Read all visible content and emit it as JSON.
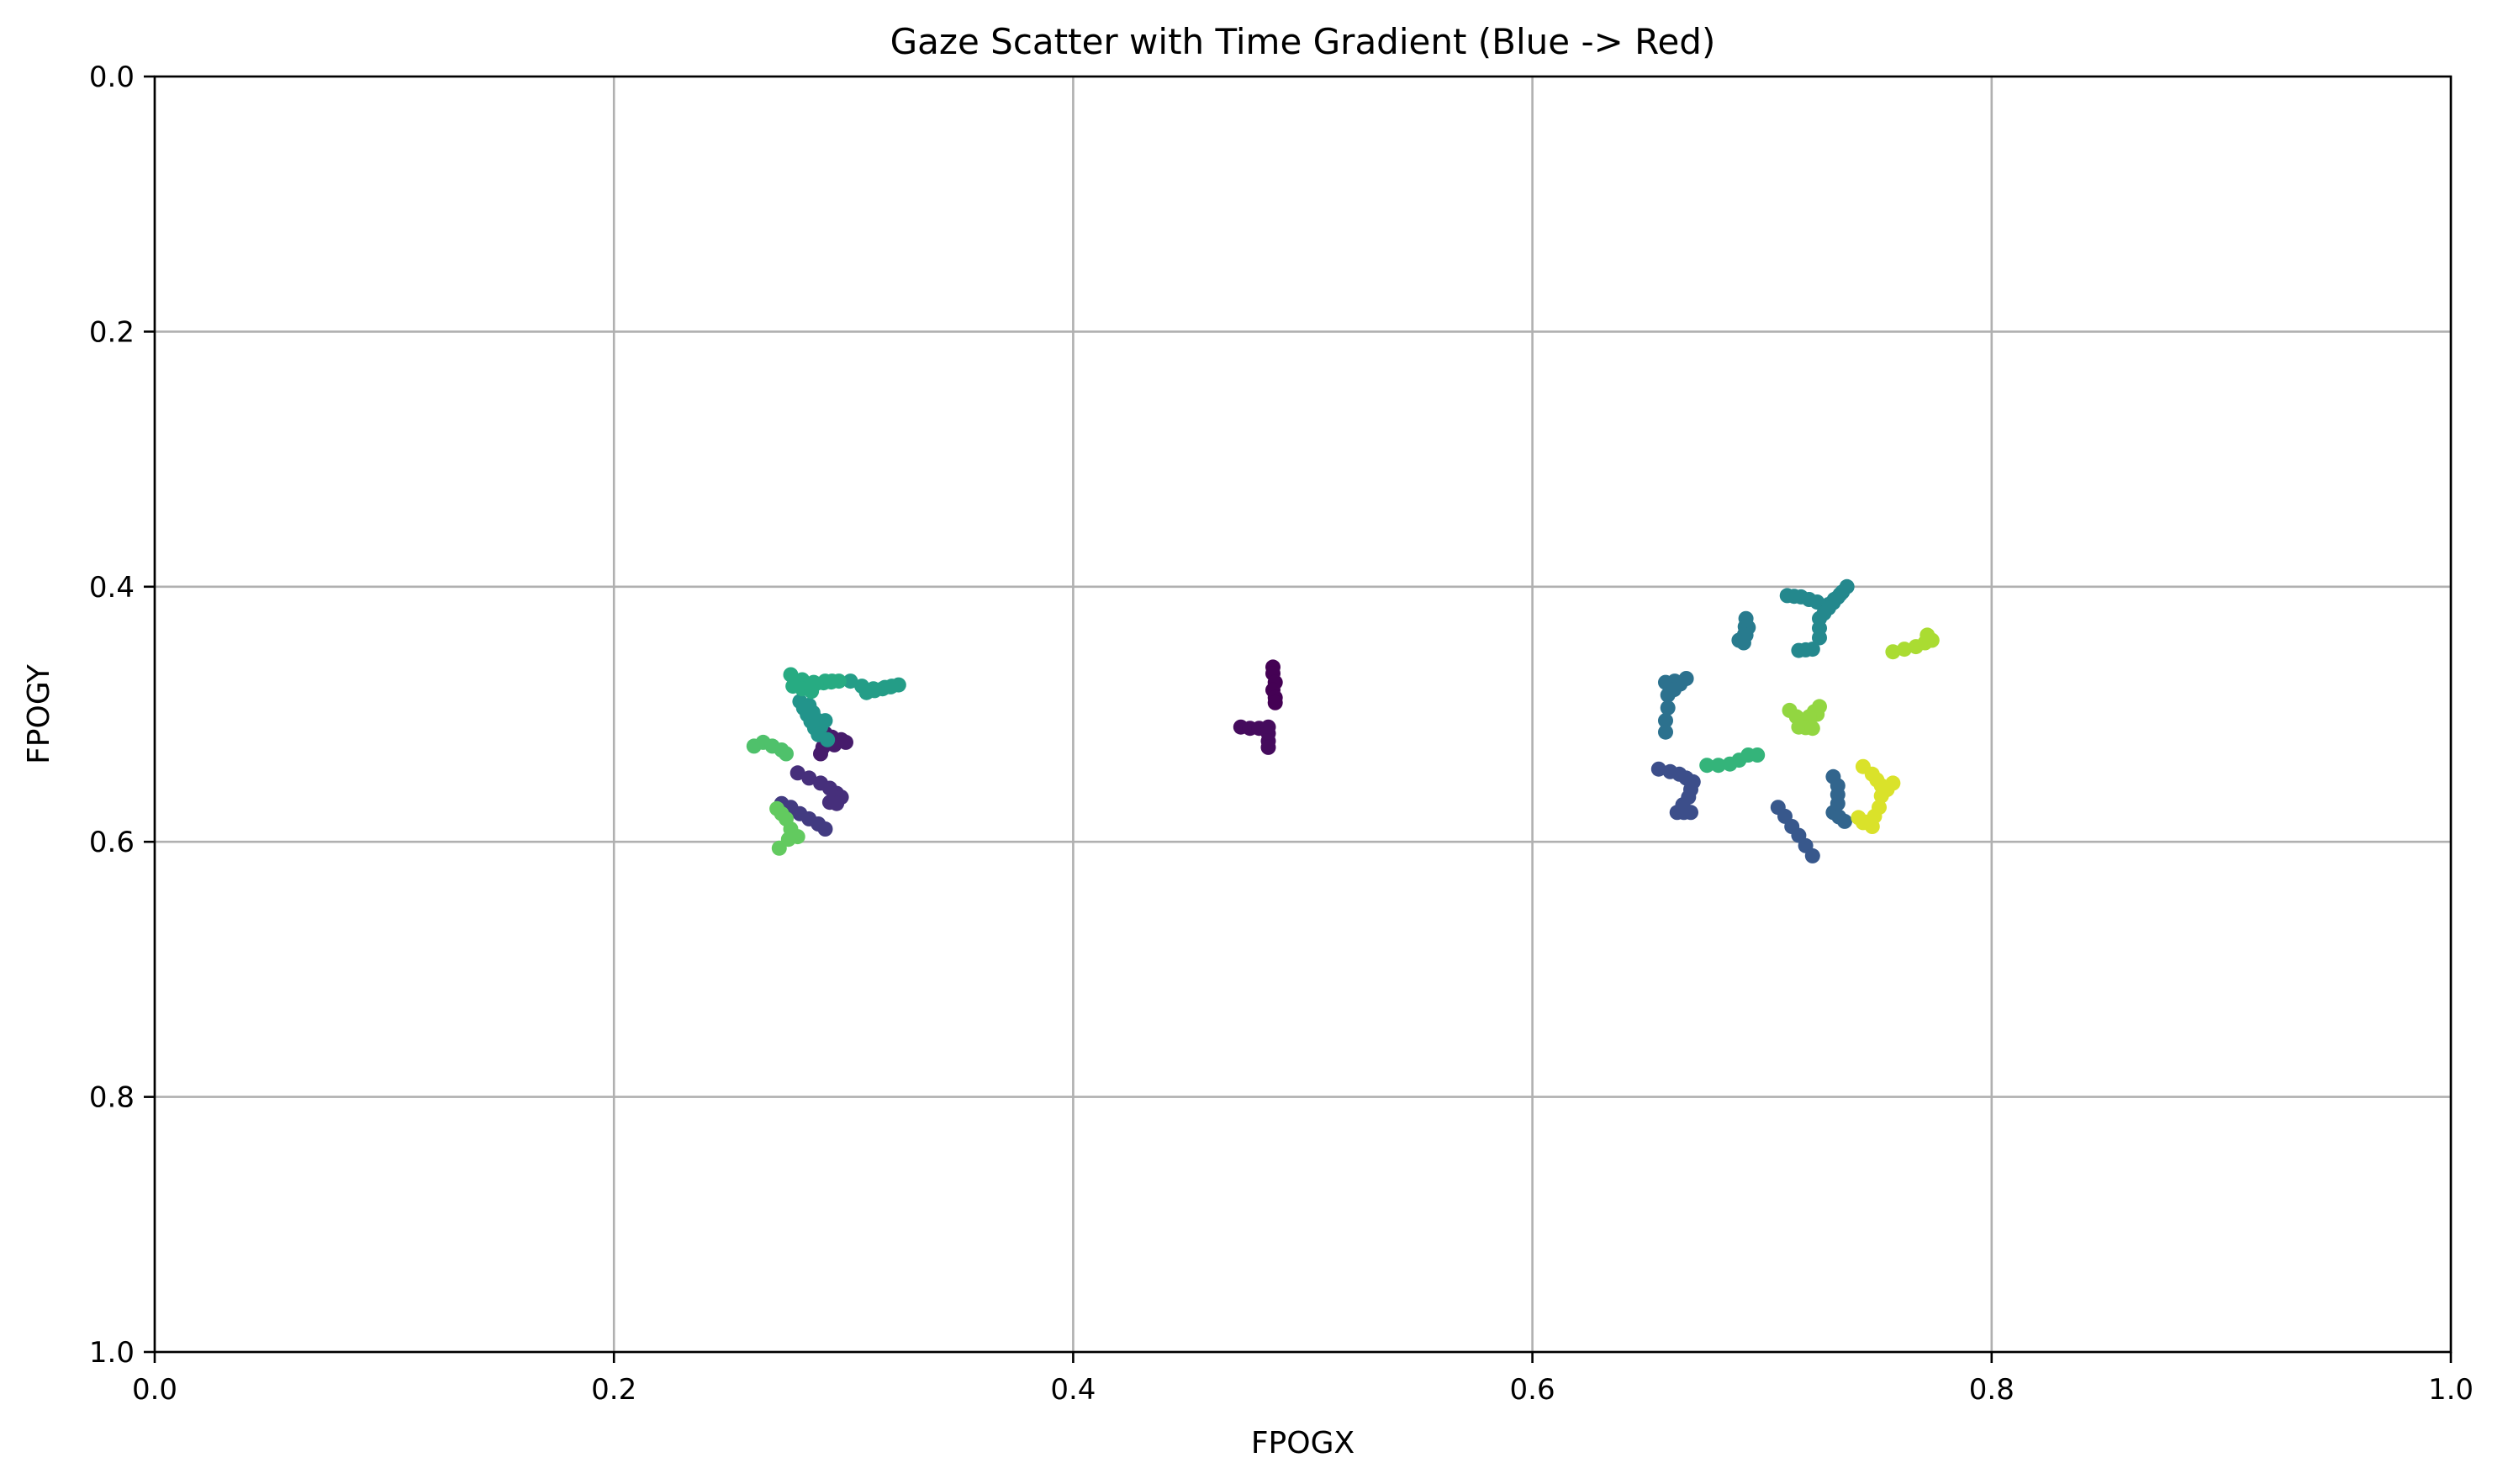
{
  "chart_data": {
    "type": "scatter",
    "title": "Gaze Scatter with Time Gradient (Blue -> Red)",
    "xlabel": "FPOGX",
    "ylabel": "FPOGY",
    "xlim": [
      0.0,
      1.0
    ],
    "ylim": [
      0.0,
      1.0
    ],
    "y_inverted": true,
    "grid": true,
    "colormap": "viridis",
    "x_ticks": [
      "0.0",
      "0.2",
      "0.4",
      "0.6",
      "0.8",
      "1.0"
    ],
    "y_ticks": [
      "0.0",
      "0.2",
      "0.4",
      "0.6",
      "0.8",
      "1.0"
    ],
    "strokes": [
      {
        "t": 0.0,
        "points": [
          [
            0.487,
            0.463
          ],
          [
            0.487,
            0.468
          ],
          [
            0.488,
            0.475
          ],
          [
            0.487,
            0.481
          ],
          [
            0.488,
            0.487
          ],
          [
            0.488,
            0.491
          ]
        ]
      },
      {
        "t": 0.03,
        "points": [
          [
            0.473,
            0.51
          ],
          [
            0.477,
            0.511
          ],
          [
            0.481,
            0.511
          ],
          [
            0.485,
            0.51
          ],
          [
            0.485,
            0.515
          ],
          [
            0.485,
            0.521
          ],
          [
            0.485,
            0.526
          ]
        ]
      },
      {
        "t": 0.08,
        "points": [
          [
            0.292,
            0.515
          ],
          [
            0.295,
            0.518
          ],
          [
            0.299,
            0.52
          ],
          [
            0.301,
            0.522
          ],
          [
            0.296,
            0.524
          ],
          [
            0.291,
            0.526
          ],
          [
            0.29,
            0.531
          ]
        ]
      },
      {
        "t": 0.14,
        "points": [
          [
            0.28,
            0.546
          ],
          [
            0.285,
            0.55
          ],
          [
            0.29,
            0.554
          ],
          [
            0.294,
            0.558
          ],
          [
            0.297,
            0.562
          ],
          [
            0.299,
            0.565
          ],
          [
            0.297,
            0.57
          ],
          [
            0.294,
            0.569
          ]
        ]
      },
      {
        "t": 0.18,
        "points": [
          [
            0.273,
            0.57
          ],
          [
            0.277,
            0.573
          ],
          [
            0.281,
            0.578
          ],
          [
            0.285,
            0.582
          ],
          [
            0.289,
            0.586
          ],
          [
            0.292,
            0.59
          ]
        ]
      },
      {
        "t": 0.24,
        "points": [
          [
            0.655,
            0.543
          ],
          [
            0.66,
            0.545
          ],
          [
            0.664,
            0.547
          ],
          [
            0.667,
            0.55
          ],
          [
            0.67,
            0.553
          ],
          [
            0.668,
            0.565
          ],
          [
            0.663,
            0.577
          ],
          [
            0.669,
            0.577
          ]
        ]
      },
      {
        "t": 0.28,
        "points": [
          [
            0.707,
            0.573
          ],
          [
            0.71,
            0.58
          ],
          [
            0.713,
            0.588
          ],
          [
            0.716,
            0.595
          ],
          [
            0.719,
            0.603
          ],
          [
            0.722,
            0.611
          ]
        ]
      },
      {
        "t": 0.33,
        "points": [
          [
            0.731,
            0.549
          ],
          [
            0.733,
            0.556
          ],
          [
            0.733,
            0.563
          ],
          [
            0.733,
            0.57
          ],
          [
            0.731,
            0.577
          ],
          [
            0.736,
            0.584
          ]
        ]
      },
      {
        "t": 0.38,
        "points": [
          [
            0.658,
            0.475
          ],
          [
            0.662,
            0.474
          ],
          [
            0.667,
            0.472
          ],
          [
            0.659,
            0.485
          ],
          [
            0.659,
            0.495
          ],
          [
            0.658,
            0.505
          ],
          [
            0.658,
            0.514
          ]
        ]
      },
      {
        "t": 0.42,
        "points": [
          [
            0.69,
            0.442
          ],
          [
            0.693,
            0.438
          ],
          [
            0.694,
            0.432
          ],
          [
            0.693,
            0.425
          ],
          [
            0.692,
            0.444
          ]
        ]
      },
      {
        "t": 0.47,
        "points": [
          [
            0.711,
            0.407
          ],
          [
            0.717,
            0.408
          ],
          [
            0.724,
            0.412
          ],
          [
            0.729,
            0.414
          ],
          [
            0.734,
            0.406
          ],
          [
            0.737,
            0.4
          ],
          [
            0.725,
            0.425
          ],
          [
            0.725,
            0.44
          ],
          [
            0.722,
            0.449
          ],
          [
            0.716,
            0.45
          ]
        ]
      },
      {
        "t": 0.52,
        "points": [
          [
            0.292,
            0.505
          ],
          [
            0.29,
            0.51
          ],
          [
            0.285,
            0.493
          ],
          [
            0.281,
            0.49
          ],
          [
            0.289,
            0.516
          ],
          [
            0.293,
            0.52
          ]
        ]
      },
      {
        "t": 0.56,
        "points": [
          [
            0.303,
            0.474
          ],
          [
            0.308,
            0.478
          ],
          [
            0.313,
            0.48
          ],
          [
            0.318,
            0.479
          ],
          [
            0.324,
            0.477
          ],
          [
            0.31,
            0.483
          ]
        ]
      },
      {
        "t": 0.62,
        "points": [
          [
            0.277,
            0.469
          ],
          [
            0.282,
            0.473
          ],
          [
            0.287,
            0.475
          ],
          [
            0.292,
            0.474
          ],
          [
            0.298,
            0.474
          ],
          [
            0.278,
            0.478
          ],
          [
            0.286,
            0.482
          ]
        ]
      },
      {
        "t": 0.66,
        "points": [
          [
            0.676,
            0.54
          ],
          [
            0.681,
            0.54
          ],
          [
            0.686,
            0.539
          ],
          [
            0.69,
            0.536
          ],
          [
            0.694,
            0.532
          ],
          [
            0.698,
            0.532
          ]
        ]
      },
      {
        "t": 0.72,
        "points": [
          [
            0.261,
            0.525
          ],
          [
            0.265,
            0.522
          ],
          [
            0.269,
            0.525
          ],
          [
            0.273,
            0.528
          ],
          [
            0.275,
            0.531
          ]
        ]
      },
      {
        "t": 0.76,
        "points": [
          [
            0.271,
            0.574
          ],
          [
            0.275,
            0.582
          ],
          [
            0.277,
            0.59
          ],
          [
            0.28,
            0.596
          ],
          [
            0.276,
            0.598
          ],
          [
            0.272,
            0.605
          ]
        ]
      },
      {
        "t": 0.84,
        "points": [
          [
            0.712,
            0.497
          ],
          [
            0.715,
            0.502
          ],
          [
            0.72,
            0.506
          ],
          [
            0.724,
            0.5
          ],
          [
            0.725,
            0.494
          ],
          [
            0.716,
            0.51
          ],
          [
            0.722,
            0.511
          ]
        ]
      },
      {
        "t": 0.88,
        "points": [
          [
            0.757,
            0.451
          ],
          [
            0.762,
            0.449
          ],
          [
            0.767,
            0.447
          ],
          [
            0.771,
            0.444
          ],
          [
            0.772,
            0.438
          ],
          [
            0.774,
            0.442
          ]
        ]
      },
      {
        "t": 0.95,
        "points": [
          [
            0.744,
            0.541
          ],
          [
            0.748,
            0.547
          ],
          [
            0.752,
            0.556
          ],
          [
            0.757,
            0.554
          ],
          [
            0.752,
            0.564
          ],
          [
            0.751,
            0.573
          ],
          [
            0.749,
            0.58
          ],
          [
            0.744,
            0.585
          ],
          [
            0.742,
            0.581
          ],
          [
            0.748,
            0.588
          ]
        ]
      }
    ]
  }
}
